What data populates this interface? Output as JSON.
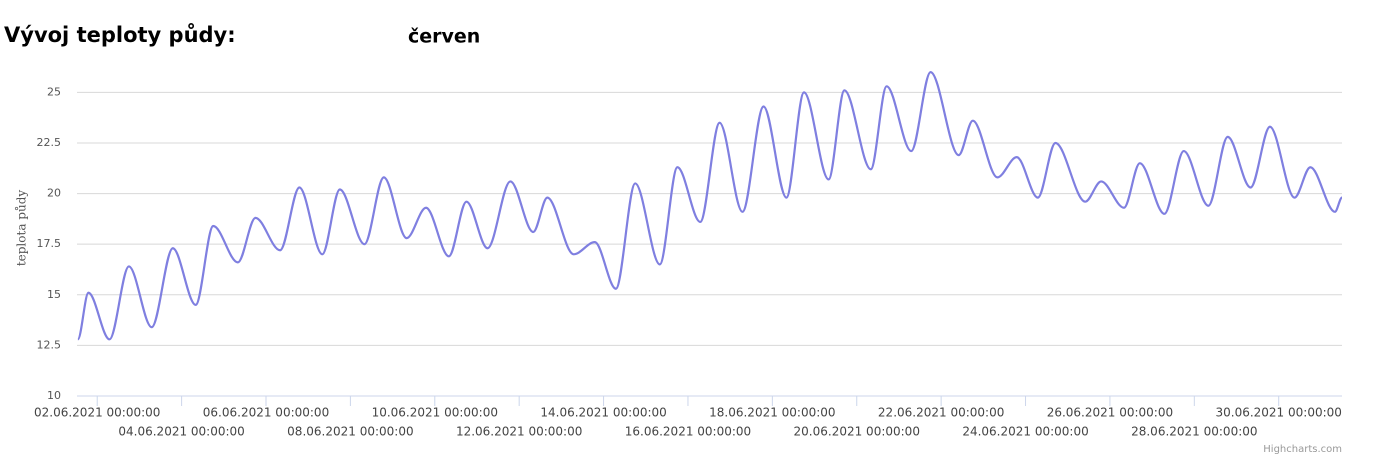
{
  "page_title": "Vývoj teploty půdy:",
  "month": "červen",
  "credit": "Highcharts.com",
  "chart_data": {
    "type": "line",
    "y_label": "teplota půdy",
    "x": [
      "2021-06-01T13:00",
      "2021-06-01T19:00",
      "2021-06-02T07:00",
      "2021-06-02T18:00",
      "2021-06-03T07:00",
      "2021-06-03T19:00",
      "2021-06-04T08:00",
      "2021-06-04T18:00",
      "2021-06-05T08:00",
      "2021-06-05T18:00",
      "2021-06-06T08:00",
      "2021-06-06T19:00",
      "2021-06-07T08:00",
      "2021-06-07T18:00",
      "2021-06-08T08:00",
      "2021-06-08T19:00",
      "2021-06-09T08:00",
      "2021-06-09T19:00",
      "2021-06-10T08:00",
      "2021-06-10T18:00",
      "2021-06-11T06:00",
      "2021-06-11T19:00",
      "2021-06-12T08:00",
      "2021-06-12T16:00",
      "2021-06-13T07:00",
      "2021-06-13T19:00",
      "2021-06-14T07:00",
      "2021-06-14T18:00",
      "2021-06-15T08:00",
      "2021-06-15T18:00",
      "2021-06-16T07:00",
      "2021-06-16T18:00",
      "2021-06-17T07:00",
      "2021-06-17T19:00",
      "2021-06-18T08:00",
      "2021-06-18T18:00",
      "2021-06-19T08:00",
      "2021-06-19T17:00",
      "2021-06-20T08:00",
      "2021-06-20T17:00",
      "2021-06-21T07:00",
      "2021-06-21T18:00",
      "2021-06-22T10:00",
      "2021-06-22T18:00",
      "2021-06-23T08:00",
      "2021-06-23T19:00",
      "2021-06-24T07:00",
      "2021-06-24T17:00",
      "2021-06-25T10:00",
      "2021-06-25T19:00",
      "2021-06-26T08:00",
      "2021-06-26T17:00",
      "2021-06-27T07:00",
      "2021-06-27T18:00",
      "2021-06-28T08:00",
      "2021-06-28T19:00",
      "2021-06-29T08:00",
      "2021-06-29T19:00",
      "2021-06-30T09:00",
      "2021-06-30T18:00",
      "2021-07-01T08:00",
      "2021-07-01T12:00"
    ],
    "series": [
      {
        "color": "#7f7fe0",
        "values": [
          12.8,
          15.1,
          12.8,
          16.4,
          13.4,
          17.3,
          14.5,
          18.4,
          16.6,
          18.8,
          17.2,
          20.3,
          17.0,
          20.2,
          17.5,
          20.8,
          17.8,
          19.3,
          16.9,
          19.6,
          17.3,
          20.6,
          18.1,
          19.8,
          17.0,
          17.6,
          15.3,
          20.5,
          16.5,
          21.3,
          18.6,
          23.5,
          19.1,
          24.3,
          19.8,
          25.0,
          20.7,
          25.1,
          21.2,
          25.3,
          22.1,
          26.0,
          21.9,
          23.6,
          20.8,
          21.8,
          19.8,
          22.5,
          19.6,
          20.6,
          19.3,
          21.5,
          19.0,
          22.1,
          19.4,
          22.8,
          20.3,
          23.3,
          19.8,
          21.3,
          19.1,
          19.8
        ]
      }
    ],
    "xlim": [
      "2021-06-01T12:30",
      "2021-07-01T12:00"
    ],
    "xticks": [
      {
        "value": "2021-06-02T00:00",
        "label": "02.06.2021 00:00:00"
      },
      {
        "value": "2021-06-04T00:00",
        "label": "04.06.2021 00:00:00"
      },
      {
        "value": "2021-06-06T00:00",
        "label": "06.06.2021 00:00:00"
      },
      {
        "value": "2021-06-08T00:00",
        "label": "08.06.2021 00:00:00"
      },
      {
        "value": "2021-06-10T00:00",
        "label": "10.06.2021 00:00:00"
      },
      {
        "value": "2021-06-12T00:00",
        "label": "12.06.2021 00:00:00"
      },
      {
        "value": "2021-06-14T00:00",
        "label": "14.06.2021 00:00:00"
      },
      {
        "value": "2021-06-16T00:00",
        "label": "16.06.2021 00:00:00"
      },
      {
        "value": "2021-06-18T00:00",
        "label": "18.06.2021 00:00:00"
      },
      {
        "value": "2021-06-20T00:00",
        "label": "20.06.2021 00:00:00"
      },
      {
        "value": "2021-06-22T00:00",
        "label": "22.06.2021 00:00:00"
      },
      {
        "value": "2021-06-24T00:00",
        "label": "24.06.2021 00:00:00"
      },
      {
        "value": "2021-06-26T00:00",
        "label": "26.06.2021 00:00:00"
      },
      {
        "value": "2021-06-28T00:00",
        "label": "28.06.2021 00:00:00"
      },
      {
        "value": "2021-06-30T00:00",
        "label": "30.06.2021 00:00:00"
      }
    ],
    "ylim": [
      10,
      26.5
    ],
    "yticks": [
      10,
      12.5,
      15,
      17.5,
      20,
      22.5,
      25
    ],
    "grid": true
  }
}
